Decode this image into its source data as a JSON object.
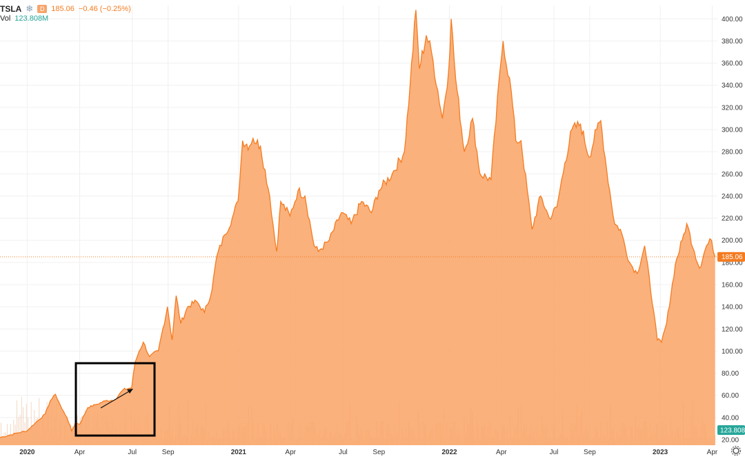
{
  "header": {
    "symbol": "TSLA",
    "interval": "D",
    "last_price": "185.06",
    "change": "−0.46 (−0.25%)",
    "volume_label": "Vol",
    "volume_value": "123.808M",
    "star_icon": "snowflake-icon"
  },
  "price_badge": {
    "value": "185.06",
    "color": "#f47b20"
  },
  "volume_badge": {
    "value": "123.808",
    "color": "#26a69a"
  },
  "colors": {
    "line": "#f47b20",
    "fill": "#f9a96e",
    "volume": "#d98b57",
    "grid": "#f0f0f0"
  },
  "chart_data": {
    "type": "area",
    "title": "",
    "xlabel": "",
    "ylabel": "",
    "x_range": [
      "2019-11-15",
      "2023-04-10"
    ],
    "ylim": [
      15,
      412
    ],
    "y_ticks": [
      20,
      40,
      60,
      80,
      100,
      120,
      140,
      160,
      180,
      200,
      220,
      240,
      260,
      280,
      300,
      320,
      340,
      360,
      380,
      400
    ],
    "y_tick_labels": [
      "20.00",
      "40.00",
      "60.00",
      "80.00",
      "100.00",
      "120.00",
      "140.00",
      "160.00",
      "180.00",
      "200.00",
      "220.00",
      "240.00",
      "260.00",
      "280.00",
      "300.00",
      "320.00",
      "340.00",
      "360.00",
      "380.00",
      "400.00"
    ],
    "x_ticks": [
      {
        "date": "2020-01-01",
        "label": "2020",
        "bold": true
      },
      {
        "date": "2020-04-01",
        "label": "Apr",
        "bold": false
      },
      {
        "date": "2020-07-01",
        "label": "Jul",
        "bold": false
      },
      {
        "date": "2020-09-01",
        "label": "Sep",
        "bold": false
      },
      {
        "date": "2021-01-01",
        "label": "2021",
        "bold": true
      },
      {
        "date": "2021-04-01",
        "label": "Apr",
        "bold": false
      },
      {
        "date": "2021-07-01",
        "label": "Jul",
        "bold": false
      },
      {
        "date": "2021-09-01",
        "label": "Sep",
        "bold": false
      },
      {
        "date": "2022-01-01",
        "label": "2022",
        "bold": true
      },
      {
        "date": "2022-04-01",
        "label": "Apr",
        "bold": false
      },
      {
        "date": "2022-07-01",
        "label": "Jul",
        "bold": false
      },
      {
        "date": "2022-09-01",
        "label": "Sep",
        "bold": false
      },
      {
        "date": "2023-01-01",
        "label": "2023",
        "bold": true
      },
      {
        "date": "2023-04-01",
        "label": "Apr",
        "bold": false
      }
    ],
    "series": [
      {
        "points": [
          [
            "2019-11-15",
            22
          ],
          [
            "2019-12-01",
            24
          ],
          [
            "2019-12-15",
            26
          ],
          [
            "2020-01-01",
            28
          ],
          [
            "2020-01-15",
            35
          ],
          [
            "2020-02-01",
            43
          ],
          [
            "2020-02-10",
            55
          ],
          [
            "2020-02-19",
            61
          ],
          [
            "2020-03-01",
            48
          ],
          [
            "2020-03-10",
            40
          ],
          [
            "2020-03-18",
            28
          ],
          [
            "2020-03-25",
            35
          ],
          [
            "2020-04-01",
            34
          ],
          [
            "2020-04-15",
            49
          ],
          [
            "2020-05-01",
            52
          ],
          [
            "2020-05-15",
            55
          ],
          [
            "2020-06-01",
            56
          ],
          [
            "2020-06-15",
            65
          ],
          [
            "2020-06-30",
            67
          ],
          [
            "2020-07-06",
            90
          ],
          [
            "2020-07-13",
            100
          ],
          [
            "2020-07-20",
            108
          ],
          [
            "2020-07-31",
            95
          ],
          [
            "2020-08-15",
            100
          ],
          [
            "2020-08-31",
            140
          ],
          [
            "2020-09-08",
            110
          ],
          [
            "2020-09-15",
            150
          ],
          [
            "2020-09-23",
            125
          ],
          [
            "2020-10-05",
            140
          ],
          [
            "2020-10-20",
            145
          ],
          [
            "2020-11-03",
            135
          ],
          [
            "2020-11-16",
            155
          ],
          [
            "2020-11-24",
            185
          ],
          [
            "2020-12-08",
            205
          ],
          [
            "2020-12-21",
            220
          ],
          [
            "2020-12-31",
            235
          ],
          [
            "2021-01-08",
            290
          ],
          [
            "2021-01-20",
            285
          ],
          [
            "2021-01-26",
            292
          ],
          [
            "2021-02-08",
            285
          ],
          [
            "2021-02-24",
            240
          ],
          [
            "2021-03-05",
            200
          ],
          [
            "2021-03-08",
            190
          ],
          [
            "2021-03-15",
            235
          ],
          [
            "2021-03-31",
            222
          ],
          [
            "2021-04-14",
            245
          ],
          [
            "2021-04-26",
            240
          ],
          [
            "2021-05-12",
            195
          ],
          [
            "2021-05-19",
            190
          ],
          [
            "2021-06-07",
            200
          ],
          [
            "2021-06-28",
            225
          ],
          [
            "2021-07-15",
            215
          ],
          [
            "2021-08-02",
            235
          ],
          [
            "2021-08-19",
            225
          ],
          [
            "2021-09-01",
            245
          ],
          [
            "2021-09-24",
            260
          ],
          [
            "2021-10-15",
            280
          ],
          [
            "2021-10-25",
            340
          ],
          [
            "2021-11-04",
            408
          ],
          [
            "2021-11-10",
            355
          ],
          [
            "2021-11-22",
            385
          ],
          [
            "2021-12-01",
            370
          ],
          [
            "2021-12-20",
            310
          ],
          [
            "2021-12-31",
            355
          ],
          [
            "2022-01-04",
            400
          ],
          [
            "2022-01-12",
            345
          ],
          [
            "2022-01-27",
            280
          ],
          [
            "2022-02-10",
            310
          ],
          [
            "2022-02-23",
            260
          ],
          [
            "2022-03-14",
            255
          ],
          [
            "2022-03-31",
            360
          ],
          [
            "2022-04-04",
            380
          ],
          [
            "2022-04-18",
            335
          ],
          [
            "2022-04-26",
            290
          ],
          [
            "2022-05-05",
            290
          ],
          [
            "2022-05-24",
            210
          ],
          [
            "2022-06-08",
            240
          ],
          [
            "2022-06-23",
            220
          ],
          [
            "2022-07-06",
            230
          ],
          [
            "2022-07-20",
            270
          ],
          [
            "2022-08-01",
            300
          ],
          [
            "2022-08-16",
            305
          ],
          [
            "2022-08-31",
            275
          ],
          [
            "2022-09-13",
            300
          ],
          [
            "2022-09-20",
            308
          ],
          [
            "2022-09-30",
            265
          ],
          [
            "2022-10-14",
            215
          ],
          [
            "2022-10-24",
            210
          ],
          [
            "2022-11-09",
            180
          ],
          [
            "2022-11-22",
            170
          ],
          [
            "2022-12-05",
            195
          ],
          [
            "2022-12-21",
            135
          ],
          [
            "2022-12-27",
            110
          ],
          [
            "2023-01-03",
            108
          ],
          [
            "2023-01-12",
            125
          ],
          [
            "2023-01-27",
            178
          ],
          [
            "2023-02-08",
            200
          ],
          [
            "2023-02-16",
            215
          ],
          [
            "2023-03-01",
            190
          ],
          [
            "2023-03-10",
            175
          ],
          [
            "2023-03-22",
            195
          ],
          [
            "2023-03-31",
            200
          ],
          [
            "2023-04-06",
            185
          ]
        ]
      }
    ]
  }
}
